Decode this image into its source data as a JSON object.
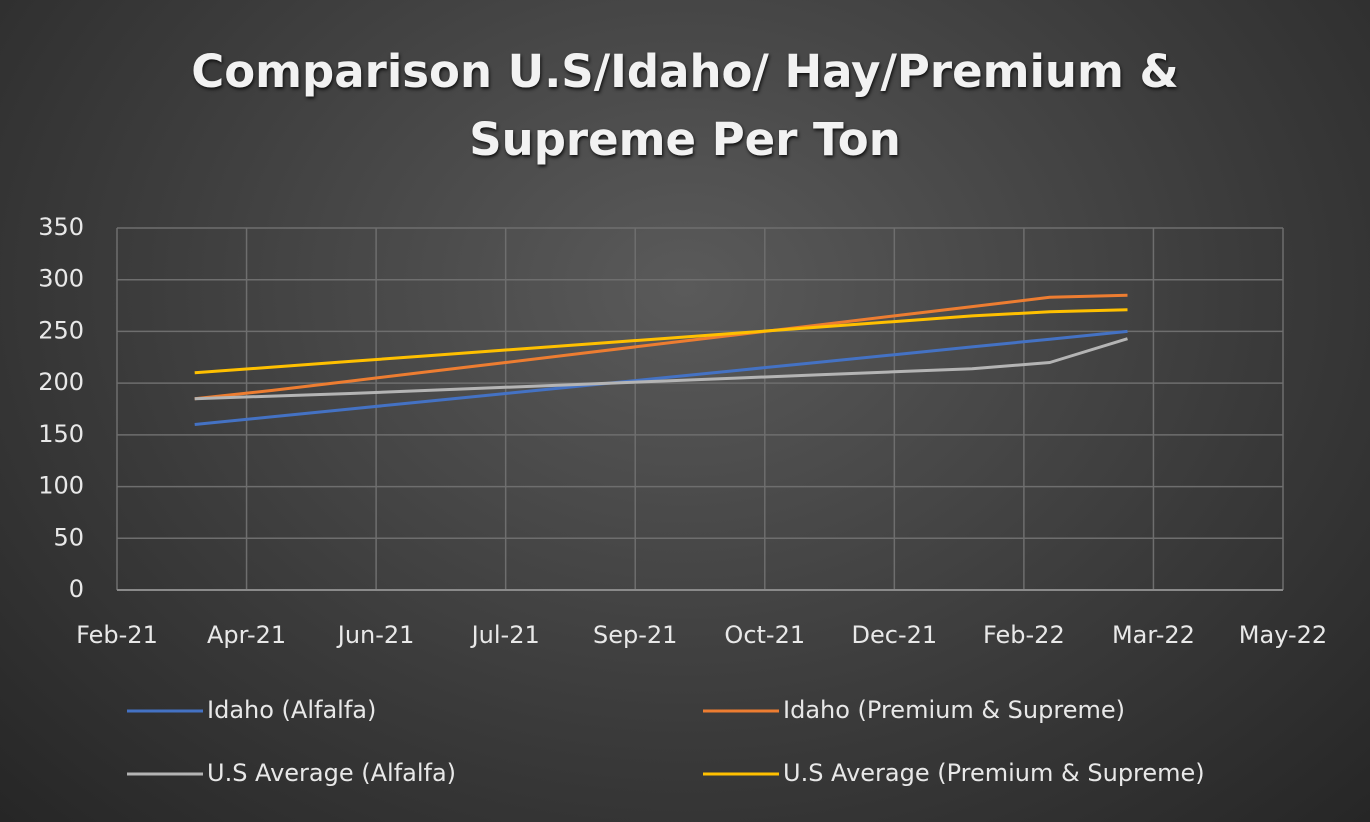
{
  "chart_data": {
    "type": "line",
    "title": "Comparison  U.S/Idaho/ Hay/Premium & Supreme Per Ton",
    "x": [
      "Mar-21",
      "Apr-21",
      "May-21",
      "Jun-21",
      "Jul-21",
      "Aug-21",
      "Sep-21",
      "Oct-21",
      "Nov-21",
      "Dec-21",
      "Jan-22",
      "Feb-22",
      "Mar-22"
    ],
    "xlim": [
      "Feb-21",
      "May-22"
    ],
    "xticks": [
      "Feb-21",
      "Apr-21",
      "Jun-21",
      "Jul-21",
      "Sep-21",
      "Oct-21",
      "Dec-21",
      "Feb-22",
      "Mar-22",
      "May-22"
    ],
    "ylim": [
      0,
      350
    ],
    "yticks": [
      0,
      50,
      100,
      150,
      200,
      250,
      300,
      350
    ],
    "grid": true,
    "legend": "bottom",
    "series": [
      {
        "name": "Idaho (Alfalfa)",
        "color": "#4472c4",
        "values": [
          160,
          167.5,
          175,
          182.5,
          190,
          197.5,
          205,
          212.5,
          220,
          227.5,
          235,
          242.5,
          250
        ]
      },
      {
        "name": "Idaho (Premium & Supreme)",
        "color": "#ed7d31",
        "values": [
          185,
          193,
          202,
          211,
          220,
          229,
          238,
          247,
          256,
          265,
          274,
          283,
          285
        ]
      },
      {
        "name": "U.S Average (Alfalfa)",
        "color": "#b4b4b4",
        "values": [
          185,
          187.5,
          190,
          193,
          196,
          199,
          202,
          205,
          208,
          211,
          214,
          220,
          243
        ]
      },
      {
        "name": "U.S Average (Premium & Supreme)",
        "color": "#ffc000",
        "values": [
          210,
          215.5,
          221,
          226.5,
          232,
          237.5,
          243,
          248.5,
          254,
          259.5,
          265,
          269,
          271
        ]
      }
    ]
  }
}
